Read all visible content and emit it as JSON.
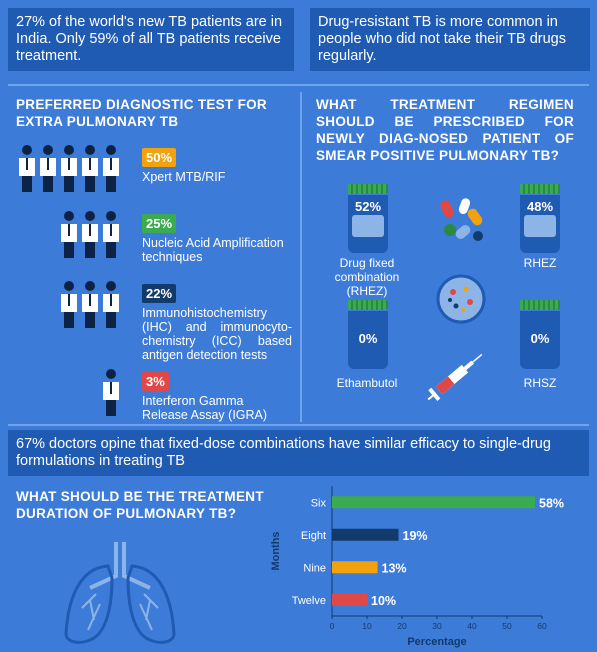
{
  "top": {
    "left_text": "27% of the world's new TB patients are in India. Only 59% of all TB patients receive treatment.",
    "right_text": "Drug-resistant TB is more common in people who did not take their TB drugs regularly."
  },
  "diagnostic": {
    "heading": "PREFERRED DIAGNOSTIC TEST FOR EXTRA PULMONARY TB",
    "items": [
      {
        "pct": "50%",
        "label": "Xpert MTB/RIF",
        "color": "#f2a20c",
        "people": 5
      },
      {
        "pct": "25%",
        "label": "Nucleic Acid Amplification techniques",
        "color": "#3bab51",
        "people": 3
      },
      {
        "pct": "22%",
        "label": "Immunohistochemistry (IHC) and immunocyto-chemistry (ICC) based antigen detection tests",
        "color": "#123a6b",
        "people": 3
      },
      {
        "pct": "3%",
        "label": "Interferon Gamma Release Assay (IGRA)",
        "color": "#e04848",
        "people": 1
      }
    ]
  },
  "regimen": {
    "heading": "WHAT TREATMENT REGIMEN SHOULD BE PRESCRIBED FOR NEWLY DIAG-NOSED PATIENT OF SMEAR POSITIVE PULMONARY TB?",
    "items": [
      {
        "pct": "52%",
        "label": "Drug fixed combination (RHEZ)",
        "fill": 0.52
      },
      {
        "pct": "48%",
        "label": "RHEZ",
        "fill": 0.48
      },
      {
        "pct": "0%",
        "label": "Ethambutol",
        "fill": 0
      },
      {
        "pct": "0%",
        "label": "RHSZ",
        "fill": 0
      }
    ]
  },
  "middle_text": "67% doctors opine that fixed-dose combinations have similar efficacy to single-drug formulations in treating TB",
  "duration": {
    "heading": "WHAT SHOULD BE THE TREATMENT DURATION OF PULMONARY TB?"
  },
  "chart_data": {
    "type": "bar",
    "orientation": "horizontal",
    "categories": [
      "Six",
      "Eight",
      "Nine",
      "Twelve"
    ],
    "values": [
      58,
      19,
      13,
      10
    ],
    "value_labels": [
      "58%",
      "19%",
      "13%",
      "10%"
    ],
    "colors": [
      "#3bab51",
      "#123a6b",
      "#f2a20c",
      "#e04848"
    ],
    "xlabel": "Percentage",
    "ylabel": "Months",
    "xlim": [
      0,
      60
    ],
    "xticks": [
      "0",
      "10",
      "20",
      "30",
      "40",
      "50",
      "60"
    ]
  }
}
